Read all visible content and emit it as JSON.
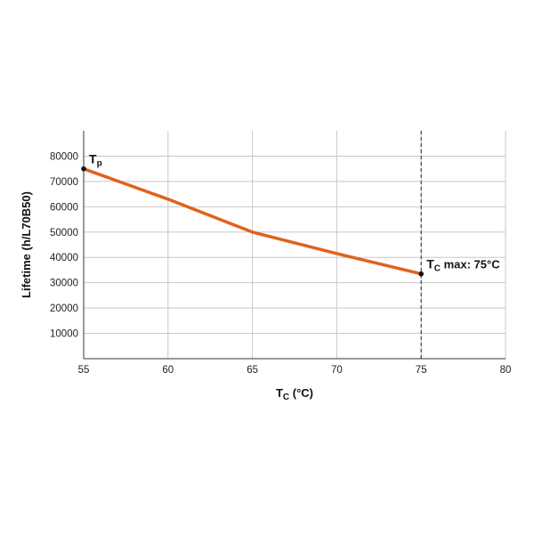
{
  "chart_data": {
    "type": "line",
    "xlabel": "T",
    "xlabel_sub": "C",
    "xlabel_unit": " (°C)",
    "ylabel": "Lifetime (h/L70B50)",
    "xlim": [
      55,
      80
    ],
    "ylim": [
      0,
      90000
    ],
    "x_ticks": [
      "55",
      "60",
      "65",
      "70",
      "75",
      "80"
    ],
    "y_ticks": [
      "10000",
      "20000",
      "30000",
      "40000",
      "50000",
      "60000",
      "70000",
      "80000"
    ],
    "grid": true,
    "series": [
      {
        "color": "#e0621b",
        "x": [
          55,
          60,
          65,
          70,
          75
        ],
        "y": [
          75000,
          63000,
          50000,
          41500,
          33500
        ]
      }
    ],
    "markers": [
      {
        "x": 55,
        "y": 75000,
        "label": "T",
        "label_sub": "p"
      },
      {
        "x": 75,
        "y": 33500,
        "label": "T",
        "label_sub": "C",
        "label_rest": " max: 75°C"
      }
    ],
    "reference_line": {
      "x": 75,
      "style": "dashed"
    }
  }
}
